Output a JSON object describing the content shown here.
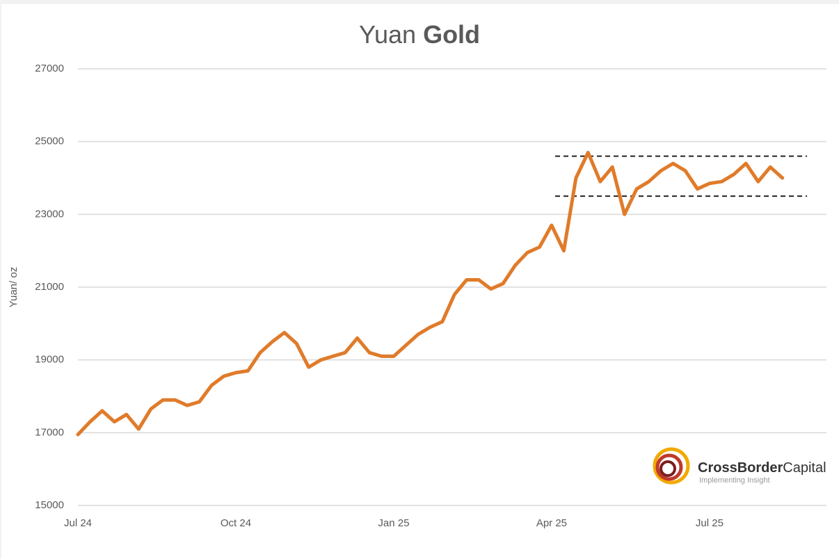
{
  "chart_data": {
    "type": "line",
    "title": [
      "Yuan",
      "Gold"
    ],
    "y_label": "Yuan/ oz",
    "categories": [
      "Jul 24",
      null,
      null,
      null,
      null,
      null,
      null,
      null,
      null,
      null,
      null,
      null,
      null,
      "Oct 24",
      null,
      null,
      null,
      null,
      null,
      null,
      null,
      null,
      null,
      null,
      null,
      null,
      "Jan 25",
      null,
      null,
      null,
      null,
      null,
      null,
      null,
      null,
      null,
      null,
      null,
      null,
      "Apr 25",
      null,
      null,
      null,
      null,
      null,
      null,
      null,
      null,
      null,
      null,
      null,
      null,
      "Jul 25",
      null,
      null,
      null,
      null,
      null,
      null
    ],
    "series": [
      {
        "name": "Yuan Gold",
        "color": "#e07b2a",
        "values": [
          16950,
          17300,
          17600,
          17300,
          17500,
          17100,
          17650,
          17900,
          17900,
          17750,
          17850,
          18300,
          18550,
          18650,
          18700,
          19200,
          19500,
          19750,
          19450,
          18800,
          19000,
          19100,
          19200,
          19600,
          19200,
          19100,
          19100,
          19400,
          19700,
          19900,
          20050,
          20800,
          21200,
          21200,
          20950,
          21100,
          21600,
          21950,
          22100,
          22700,
          22000,
          24000,
          24700,
          23900,
          24300,
          23000,
          23700,
          23900,
          24200,
          24400,
          24200,
          23700,
          23850,
          23900,
          24100,
          24400,
          23900,
          24300,
          24000
        ]
      }
    ],
    "reference_lines": [
      24600,
      23500
    ],
    "ylim": [
      15000,
      27000
    ],
    "yticks": [
      15000,
      17000,
      19000,
      21000,
      23000,
      25000,
      27000
    ],
    "grid": true,
    "logo": {
      "name": [
        "CrossBorder",
        "Capital"
      ],
      "tagline": "Implementing Insight"
    }
  }
}
